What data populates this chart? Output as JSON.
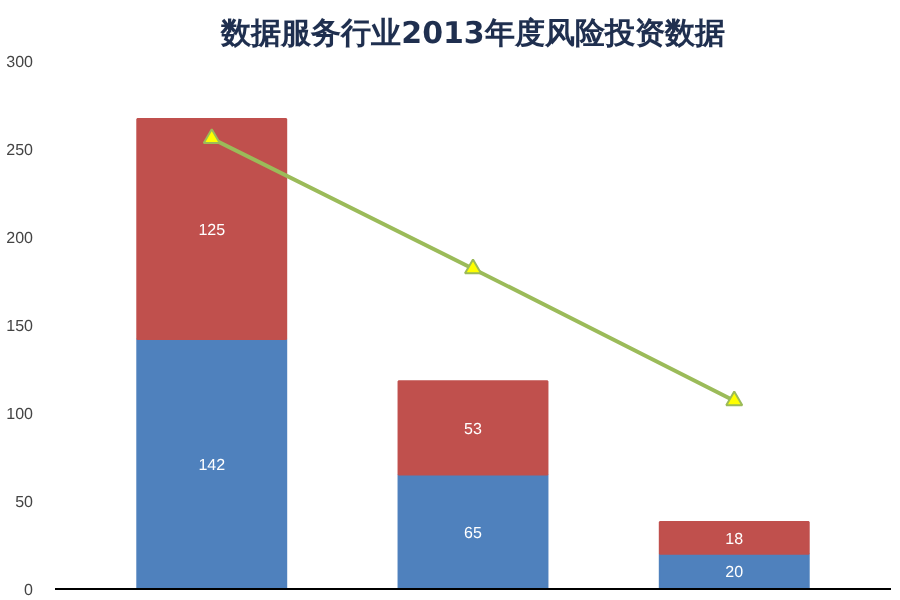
{
  "chart_data": {
    "type": "bar",
    "title": "数据服务行业2013年度风险投资数据",
    "categories": [
      null,
      null,
      null
    ],
    "stacked": true,
    "series": [
      {
        "color": "#4f81bd",
        "values": [
          142,
          65,
          20
        ],
        "value_labels": [
          "142",
          "65",
          "20"
        ]
      },
      {
        "color": "#c0504d",
        "values": [
          125,
          53,
          18
        ],
        "value_labels": [
          "125",
          "53",
          "18"
        ]
      },
      {
        "type": "line",
        "color": "#9bbb59",
        "values": [
          256,
          182,
          107
        ],
        "marker": "triangle"
      }
    ],
    "ylim": [
      0,
      300
    ],
    "yticks": [
      0,
      50,
      100,
      150,
      200,
      250,
      300
    ],
    "grid": false
  }
}
